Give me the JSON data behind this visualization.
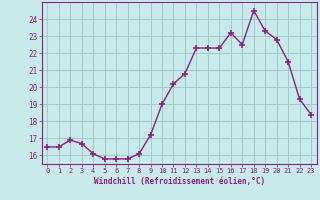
{
  "x": [
    0,
    1,
    2,
    3,
    4,
    5,
    6,
    7,
    8,
    9,
    10,
    11,
    12,
    13,
    14,
    15,
    16,
    17,
    18,
    19,
    20,
    21,
    22,
    23
  ],
  "y": [
    16.5,
    16.5,
    16.9,
    16.7,
    16.1,
    15.8,
    15.8,
    15.8,
    16.1,
    17.2,
    19.0,
    20.2,
    20.8,
    22.3,
    22.3,
    22.3,
    23.2,
    22.5,
    24.5,
    23.3,
    22.8,
    21.5,
    19.3,
    18.4
  ],
  "xlabel": "Windchill (Refroidissement éolien,°C)",
  "xtick_labels": [
    "0",
    "1",
    "2",
    "3",
    "4",
    "5",
    "6",
    "7",
    "8",
    "9",
    "10",
    "11",
    "12",
    "13",
    "14",
    "15",
    "16",
    "17",
    "18",
    "19",
    "20",
    "21",
    "22",
    "23"
  ],
  "ylim": [
    15.5,
    25.0
  ],
  "yticks": [
    16,
    17,
    18,
    19,
    20,
    21,
    22,
    23,
    24
  ],
  "line_color": "#882288",
  "marker_color": "#882288",
  "bg_color": "#c8eaea",
  "grid_color": "#a0cccc",
  "axis_label_color": "#882288",
  "tick_label_color": "#882288",
  "marker": "+",
  "markersize": 4,
  "linewidth": 1.0
}
